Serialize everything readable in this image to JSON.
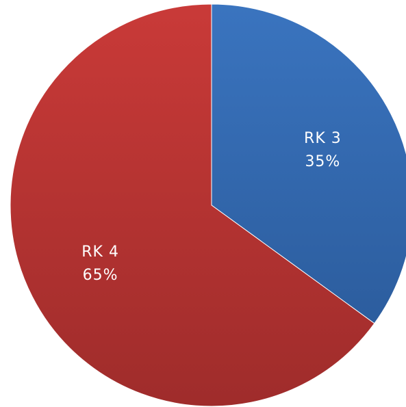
{
  "chart_data": {
    "type": "pie",
    "title": "",
    "slices": [
      {
        "category": "RK 3",
        "value": 35,
        "value_label": "35%",
        "color": "#3A74BF",
        "color_dark": "#2C5D9E"
      },
      {
        "category": "RK 4",
        "value": 65,
        "value_label": "65%",
        "color": "#C93A38",
        "color_dark": "#9F2C2B"
      }
    ],
    "start_angle_deg": 0,
    "direction": "clockwise",
    "legend": "none",
    "labels": "inside"
  }
}
